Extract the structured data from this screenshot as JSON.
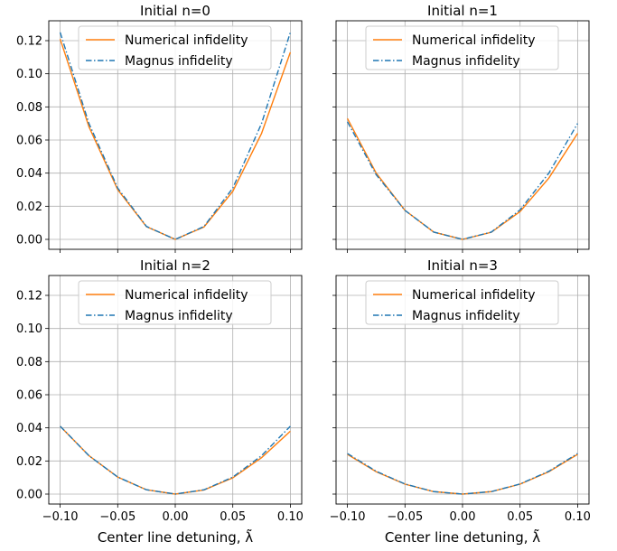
{
  "chart_data": [
    {
      "type": "line",
      "title": "Initial n=0",
      "xlim": [
        -0.1,
        0.1
      ],
      "ylim": [
        -0.006,
        0.132
      ],
      "xticks": [
        "−0.10",
        "−0.05",
        "0.00",
        "0.05",
        "0.10"
      ],
      "yticks": [
        "0.00",
        "0.02",
        "0.04",
        "0.06",
        "0.08",
        "0.10",
        "0.12"
      ],
      "show_xticklabels": false,
      "show_yticklabels": true,
      "xlabel": "",
      "grid": true,
      "legend": "top-center",
      "series": [
        {
          "name": "Numerical infidelity",
          "color": "#ff7f0e",
          "style": "solid",
          "x": [
            -0.1,
            -0.075,
            -0.05,
            -0.025,
            0.0,
            0.025,
            0.05,
            0.075,
            0.1
          ],
          "y": [
            0.121,
            0.068,
            0.03,
            0.0077,
            0.0,
            0.0075,
            0.029,
            0.064,
            0.113
          ]
        },
        {
          "name": "Magnus infidelity",
          "color": "#1f77b4",
          "style": "dashdot",
          "x": [
            -0.1,
            -0.075,
            -0.05,
            -0.025,
            0.0,
            0.025,
            0.05,
            0.075,
            0.1
          ],
          "y": [
            0.125,
            0.07,
            0.031,
            0.0078,
            0.0,
            0.0078,
            0.031,
            0.07,
            0.125
          ]
        }
      ]
    },
    {
      "type": "line",
      "title": "Initial n=1",
      "xlim": [
        -0.1,
        0.1
      ],
      "ylim": [
        -0.006,
        0.132
      ],
      "xticks": [
        "−0.10",
        "−0.05",
        "0.00",
        "0.05",
        "0.10"
      ],
      "yticks": [
        "0.00",
        "0.02",
        "0.04",
        "0.06",
        "0.08",
        "0.10",
        "0.12"
      ],
      "show_xticklabels": false,
      "show_yticklabels": false,
      "xlabel": "",
      "grid": true,
      "legend": "top-center",
      "series": [
        {
          "name": "Numerical infidelity",
          "color": "#ff7f0e",
          "style": "solid",
          "x": [
            -0.1,
            -0.075,
            -0.05,
            -0.025,
            0.0,
            0.025,
            0.05,
            0.075,
            0.1
          ],
          "y": [
            0.073,
            0.04,
            0.0175,
            0.0044,
            0.0,
            0.0043,
            0.0168,
            0.037,
            0.064
          ]
        },
        {
          "name": "Magnus infidelity",
          "color": "#1f77b4",
          "style": "dashdot",
          "x": [
            -0.1,
            -0.075,
            -0.05,
            -0.025,
            0.0,
            0.025,
            0.05,
            0.075,
            0.1
          ],
          "y": [
            0.071,
            0.039,
            0.0175,
            0.0044,
            0.0,
            0.0044,
            0.0178,
            0.04,
            0.07
          ]
        }
      ]
    },
    {
      "type": "line",
      "title": "Initial n=2",
      "xlim": [
        -0.1,
        0.1
      ],
      "ylim": [
        -0.006,
        0.132
      ],
      "xticks": [
        "−0.10",
        "−0.05",
        "0.00",
        "0.05",
        "0.10"
      ],
      "yticks": [
        "0.00",
        "0.02",
        "0.04",
        "0.06",
        "0.08",
        "0.10",
        "0.12"
      ],
      "show_xticklabels": true,
      "show_yticklabels": true,
      "xlabel": "Center line detuning, λ̃",
      "grid": true,
      "legend": "top-center",
      "series": [
        {
          "name": "Numerical infidelity",
          "color": "#ff7f0e",
          "style": "solid",
          "x": [
            -0.1,
            -0.075,
            -0.05,
            -0.025,
            0.0,
            0.025,
            0.05,
            0.075,
            0.1
          ],
          "y": [
            0.041,
            0.0232,
            0.0103,
            0.0026,
            0.0,
            0.0025,
            0.0098,
            0.022,
            0.038
          ]
        },
        {
          "name": "Magnus infidelity",
          "color": "#1f77b4",
          "style": "dashdot",
          "x": [
            -0.1,
            -0.075,
            -0.05,
            -0.025,
            0.0,
            0.025,
            0.05,
            0.075,
            0.1
          ],
          "y": [
            0.041,
            0.0232,
            0.0103,
            0.0026,
            0.0,
            0.0026,
            0.0103,
            0.0232,
            0.041
          ]
        }
      ]
    },
    {
      "type": "line",
      "title": "Initial n=3",
      "xlim": [
        -0.1,
        0.1
      ],
      "ylim": [
        -0.006,
        0.132
      ],
      "xticks": [
        "−0.10",
        "−0.05",
        "0.00",
        "0.05",
        "0.10"
      ],
      "yticks": [
        "0.00",
        "0.02",
        "0.04",
        "0.06",
        "0.08",
        "0.10",
        "0.12"
      ],
      "show_xticklabels": true,
      "show_yticklabels": false,
      "xlabel": "Center line detuning, λ̃",
      "grid": true,
      "legend": "top-center",
      "series": [
        {
          "name": "Numerical infidelity",
          "color": "#ff7f0e",
          "style": "solid",
          "x": [
            -0.1,
            -0.075,
            -0.05,
            -0.025,
            0.0,
            0.025,
            0.05,
            0.075,
            0.1
          ],
          "y": [
            0.024,
            0.0135,
            0.006,
            0.0015,
            0.0,
            0.0015,
            0.006,
            0.0135,
            0.024
          ]
        },
        {
          "name": "Magnus infidelity",
          "color": "#1f77b4",
          "style": "dashdot",
          "x": [
            -0.1,
            -0.075,
            -0.05,
            -0.025,
            0.0,
            0.025,
            0.05,
            0.075,
            0.1
          ],
          "y": [
            0.0245,
            0.0138,
            0.0061,
            0.0015,
            0.0,
            0.0015,
            0.0061,
            0.0138,
            0.0245
          ]
        }
      ]
    }
  ]
}
